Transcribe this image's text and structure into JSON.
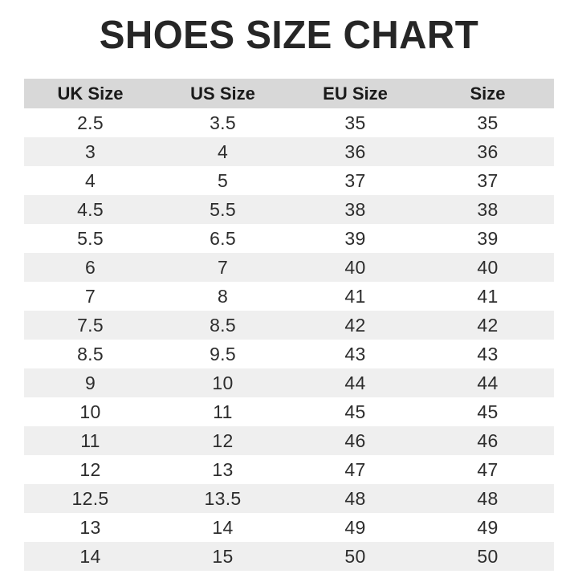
{
  "title": "SHOES SIZE CHART",
  "chart_data": {
    "type": "table",
    "title": "SHOES SIZE CHART",
    "columns": [
      "UK Size",
      "US Size",
      "EU Size",
      "Size"
    ],
    "rows": [
      [
        "2.5",
        "3.5",
        "35",
        "35"
      ],
      [
        "3",
        "4",
        "36",
        "36"
      ],
      [
        "4",
        "5",
        "37",
        "37"
      ],
      [
        "4.5",
        "5.5",
        "38",
        "38"
      ],
      [
        "5.5",
        "6.5",
        "39",
        "39"
      ],
      [
        "6",
        "7",
        "40",
        "40"
      ],
      [
        "7",
        "8",
        "41",
        "41"
      ],
      [
        "7.5",
        "8.5",
        "42",
        "42"
      ],
      [
        "8.5",
        "9.5",
        "43",
        "43"
      ],
      [
        "9",
        "10",
        "44",
        "44"
      ],
      [
        "10",
        "11",
        "45",
        "45"
      ],
      [
        "11",
        "12",
        "46",
        "46"
      ],
      [
        "12",
        "13",
        "47",
        "47"
      ],
      [
        "12.5",
        "13.5",
        "48",
        "48"
      ],
      [
        "13",
        "14",
        "49",
        "49"
      ],
      [
        "14",
        "15",
        "50",
        "50"
      ]
    ]
  },
  "colors": {
    "title_color": "#262626",
    "header_bg": "#d8d8d8",
    "header_text": "#1a1a1a",
    "row_alt_bg": "#efefef",
    "cell_text": "#2d2d2d",
    "page_bg": "#ffffff"
  }
}
